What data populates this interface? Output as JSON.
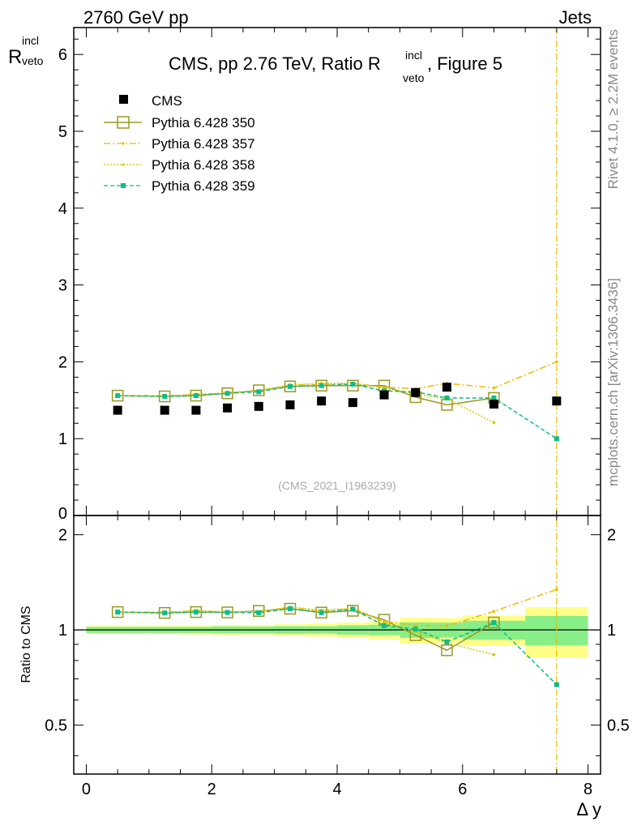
{
  "header": {
    "left_label": "2760 GeV pp",
    "right_label": "Jets",
    "side_label_top": "Rivet 4.1.0, ≥ 2.2M events",
    "side_label_bottom": "mcplots.cern.ch [arXiv:1306.3436]",
    "watermark": "(CMS_2021_I1963239)"
  },
  "chart_data": {
    "type": "scatter",
    "title": "CMS, pp 2.76 TeV, Ratio R",
    "title_sup": "incl",
    "title_sub": "veto",
    "title_tail": ", Figure 5",
    "ylabel": "R",
    "ylabel_sup": "incl",
    "ylabel_sub": "veto",
    "ratio_ylabel": "Ratio to CMS",
    "xlabel": "Δ y",
    "xlim": [
      -0.2,
      8.2
    ],
    "ylim": [
      0,
      6.35
    ],
    "ratio_ylim": [
      0.35,
      2.3
    ],
    "x_ticks": [
      "0",
      "2",
      "4",
      "6",
      "8"
    ],
    "y_ticks": [
      "1",
      "2",
      "3",
      "4",
      "5",
      "6"
    ],
    "y_zero_label": "0",
    "ratio_ticks": [
      "0.5",
      "1",
      "2"
    ],
    "x": [
      0.5,
      1.25,
      1.75,
      2.25,
      2.75,
      3.25,
      3.75,
      4.25,
      4.75,
      5.25,
      5.75,
      6.5,
      7.5
    ],
    "bins": [
      [
        0,
        1
      ],
      [
        1,
        1.5
      ],
      [
        1.5,
        2
      ],
      [
        2,
        2.5
      ],
      [
        2.5,
        3
      ],
      [
        3,
        3.5
      ],
      [
        3.5,
        4
      ],
      [
        4,
        4.5
      ],
      [
        4.5,
        5
      ],
      [
        5,
        5.5
      ],
      [
        5.5,
        6
      ],
      [
        6,
        7
      ],
      [
        7,
        8
      ]
    ],
    "data": {
      "name": "CMS",
      "values": [
        1.37,
        1.37,
        1.37,
        1.4,
        1.42,
        1.44,
        1.49,
        1.47,
        1.57,
        1.6,
        1.67,
        1.45,
        1.49
      ],
      "band_green": [
        0.03,
        0.03,
        0.03,
        0.035,
        0.035,
        0.04,
        0.04,
        0.05,
        0.06,
        0.09,
        0.09,
        0.1,
        0.16
      ],
      "band_yellow": [
        0.04,
        0.04,
        0.045,
        0.05,
        0.05,
        0.06,
        0.07,
        0.08,
        0.1,
        0.15,
        0.15,
        0.16,
        0.27
      ]
    },
    "series": [
      {
        "name": "Pythia 6.428 350",
        "color": "#999922",
        "values": [
          1.56,
          1.55,
          1.56,
          1.59,
          1.63,
          1.68,
          1.69,
          1.69,
          1.69,
          1.54,
          1.44,
          1.53,
          null
        ]
      },
      {
        "name": "Pythia 6.428 357",
        "color": "#eebb00",
        "values": [
          1.56,
          1.56,
          1.57,
          1.6,
          1.62,
          1.7,
          1.7,
          1.72,
          1.67,
          1.65,
          1.72,
          1.66,
          2.0
        ]
      },
      {
        "name": "Pythia 6.428 358",
        "color": "#cccc00",
        "values": [
          1.56,
          1.55,
          1.58,
          1.59,
          1.62,
          1.7,
          1.72,
          1.72,
          1.66,
          1.58,
          1.52,
          1.21,
          null
        ]
      },
      {
        "name": "Pythia 6.428 359",
        "color": "#11bb88",
        "values": [
          1.56,
          1.55,
          1.56,
          1.59,
          1.61,
          1.68,
          1.69,
          1.71,
          1.62,
          1.61,
          1.53,
          1.53,
          1.0
        ]
      }
    ]
  }
}
